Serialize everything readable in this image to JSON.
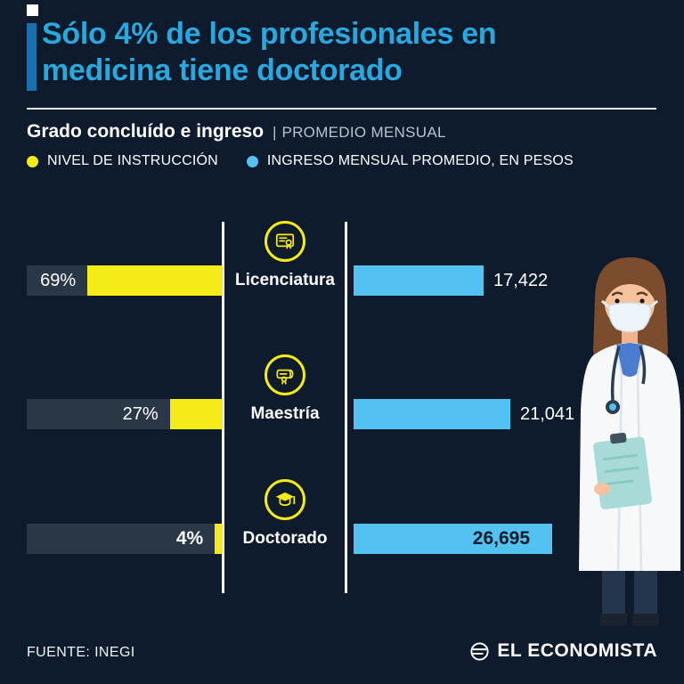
{
  "title": {
    "line1": "Sólo 4% de los profesionales en",
    "line2": "medicina tiene doctorado"
  },
  "chart_data": {
    "type": "bar",
    "orientation": "horizontal",
    "title": "Grado concluído e ingreso",
    "title_separator": "|",
    "subtitle": "PROMEDIO MENSUAL",
    "legend_position": "top",
    "categories": [
      "Licenciatura",
      "Maestría",
      "Doctorado"
    ],
    "series": [
      {
        "name": "NIVEL DE INSTRUCCIÓN",
        "unit": "%",
        "color": "#f5eb16",
        "values": [
          69,
          27,
          4
        ],
        "labels": [
          "69%",
          "27%",
          "4%"
        ]
      },
      {
        "name": "INGRESO MENSUAL PROMEDIO, EN PESOS",
        "unit": "pesos",
        "color": "#54c2f0",
        "values": [
          17422,
          21041,
          26695
        ],
        "labels": [
          "17,422",
          "21,041",
          "26,695"
        ]
      }
    ],
    "rows": [
      {
        "label": "Licenciatura",
        "icon": "certificate-icon"
      },
      {
        "label": "Maestría",
        "icon": "diploma-icon"
      },
      {
        "label": "Doctorado",
        "icon": "graduation-cap-icon"
      }
    ],
    "highlight_row": 2
  },
  "footer": {
    "source": "FUENTE: INEGI",
    "brand": "EL ECONOMISTA"
  },
  "colors": {
    "background": "#0d1b2c",
    "title": "#29a8e0",
    "accent_bar": "#1a6fb2",
    "yellow": "#f5eb16",
    "blue": "#54c2f0",
    "track": "#2a3746"
  }
}
